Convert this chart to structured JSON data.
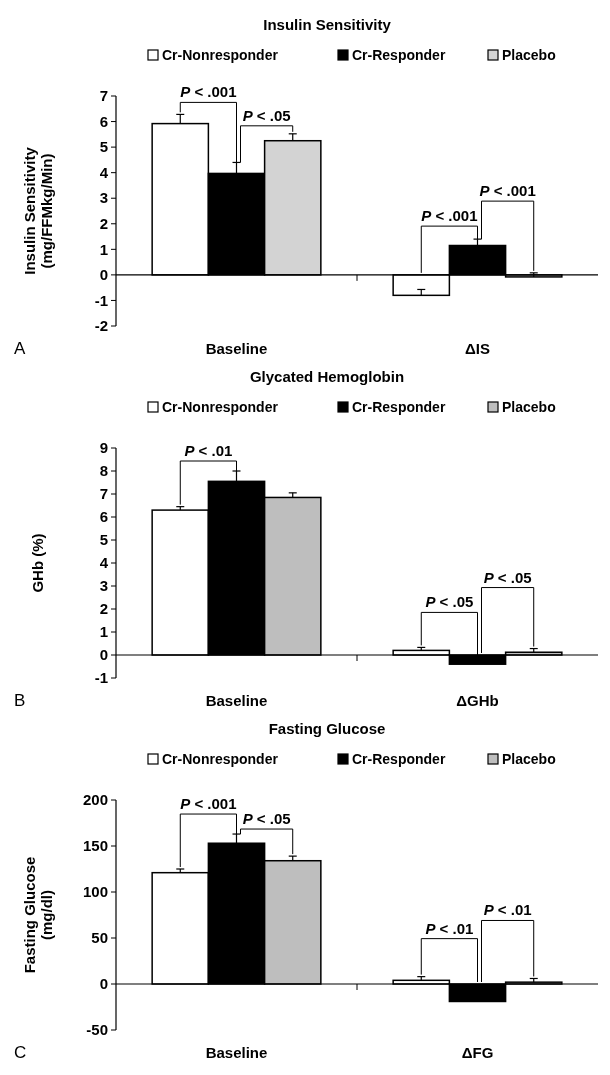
{
  "chart_data": [
    {
      "type": "bar",
      "title": "Insulin Sensitivity",
      "ylabel": "Insulin Sensitivity\n(mg/FFMkg/Min)",
      "categories": [
        "Baseline",
        "ΔIS"
      ],
      "legend": "top",
      "ylim": [
        -2,
        7
      ],
      "yticks": [
        -2,
        -1,
        0,
        1,
        2,
        3,
        4,
        5,
        6,
        7
      ],
      "series": [
        {
          "name": "Cr-Nonresponder",
          "color": "#ffffff",
          "values": [
            5.92,
            -0.8
          ],
          "errors": [
            [
              5.92,
              6.28
            ],
            [
              -0.8,
              -0.57
            ]
          ]
        },
        {
          "name": "Cr-Responder",
          "color": "#000000",
          "values": [
            3.97,
            1.15
          ],
          "errors": [
            [
              3.97,
              4.4
            ],
            [
              1.15,
              1.4
            ]
          ]
        },
        {
          "name": "Placebo",
          "color": "#d3d3d3",
          "values": [
            5.25,
            -0.08
          ],
          "errors": [
            [
              5.25,
              5.52
            ],
            [
              -0.08,
              0.08
            ]
          ]
        }
      ],
      "annotations": [
        {
          "text": "P < .001",
          "x": "Baseline",
          "y": 4.4
        },
        {
          "text": "P < .05",
          "x": "Baseline",
          "y": 4.4
        },
        {
          "text": "P < .001",
          "x": "ΔIS",
          "y": 1.4
        },
        {
          "text": "P < .001",
          "x": "ΔIS",
          "y": 1.4
        },
        "A"
      ]
    },
    {
      "type": "bar",
      "title": "Glycated Hemoglobin",
      "ylabel": "GHb (%)",
      "categories": [
        "Baseline",
        "ΔGHb"
      ],
      "legend": "top",
      "ylim": [
        -1,
        9
      ],
      "yticks": [
        -1,
        0,
        1,
        2,
        3,
        4,
        5,
        6,
        7,
        8,
        9
      ],
      "series": [
        {
          "name": "Cr-Nonresponder",
          "color": "#ffffff",
          "values": [
            6.3,
            0.2
          ],
          "errors": [
            [
              6.3,
              6.45
            ],
            [
              0.2,
              0.33
            ]
          ]
        },
        {
          "name": "Cr-Responder",
          "color": "#000000",
          "values": [
            7.55,
            -0.4
          ],
          "errors": [
            [
              7.55,
              8.0
            ],
            null
          ]
        },
        {
          "name": "Placebo",
          "color": "#bebebe",
          "values": [
            6.85,
            0.12
          ],
          "errors": [
            [
              6.85,
              7.05
            ],
            [
              0.12,
              0.28
            ]
          ]
        }
      ],
      "annotations": [
        {
          "text": "P < .01",
          "x": "Baseline",
          "y": 8.0
        },
        {
          "text": "P < .05",
          "x": "ΔGHb",
          "y": 0
        },
        "P < .05",
        "B"
      ]
    },
    {
      "type": "bar",
      "title": "Fasting Glucose",
      "ylabel": "Fasting Glucose\n(mg/dl)",
      "categories": [
        "Baseline",
        "ΔFG"
      ],
      "legend": "top",
      "ylim": [
        -50,
        200
      ],
      "yticks": [
        -50,
        0,
        50,
        100,
        150,
        200
      ],
      "series": [
        {
          "name": "Cr-Nonresponder",
          "color": "#ffffff",
          "values": [
            121,
            4
          ],
          "errors": [
            [
              121,
              125
            ],
            [
              4,
              8
            ]
          ]
        },
        {
          "name": "Cr-Responder",
          "color": "#000000",
          "values": [
            153,
            -19
          ],
          "errors": [
            [
              153,
              163
            ],
            null
          ]
        },
        {
          "name": "Placebo",
          "color": "#bebebe",
          "values": [
            134,
            2
          ],
          "errors": [
            [
              134,
              139
            ],
            [
              2,
              6
            ]
          ]
        }
      ],
      "annotations": [
        {
          "text": "P < .001",
          "x": "Baseline",
          "y": 163
        },
        {
          "text": "P < .05",
          "x": "Baseline",
          "y": 163
        },
        "P < .01",
        "P < .01",
        "C"
      ]
    }
  ]
}
